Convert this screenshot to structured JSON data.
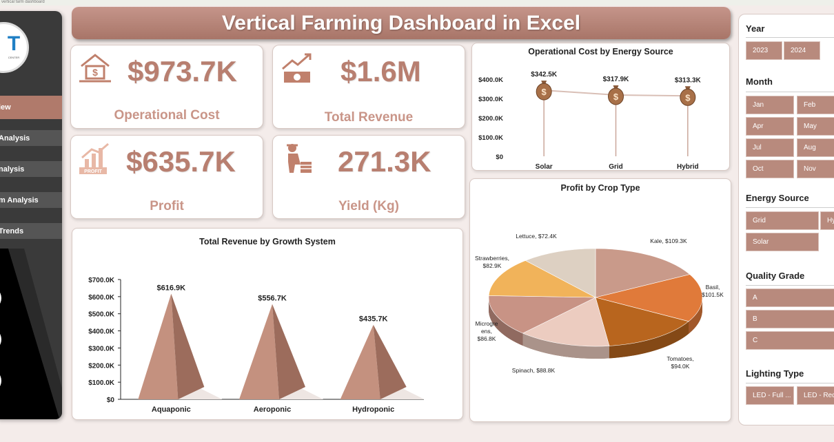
{
  "title": "Vertical Farming Dashboard in Excel",
  "top_strip_text": "vertical farm dashboard",
  "logo": {
    "mark": "T",
    "tag": "CENTER"
  },
  "colors": {
    "accent": "#b07a6b",
    "kpi_text": "#b87f70",
    "slicer": "#b88a7d"
  },
  "nav": {
    "items": [
      {
        "label": "iew",
        "active": true
      },
      {
        "label": "Analysis"
      },
      {
        "label": "nalysis"
      },
      {
        "label": "m Analysis"
      },
      {
        "label": "Trends"
      }
    ]
  },
  "kpis": {
    "operational_cost": {
      "value": "$973.7K",
      "label": "Operational Cost",
      "icon": "money-house-icon"
    },
    "total_revenue": {
      "value": "$1.6M",
      "label": "Total Revenue",
      "icon": "cash-growth-icon"
    },
    "profit": {
      "value": "$635.7K",
      "label": "Profit",
      "icon": "profit-chart-icon"
    },
    "yield": {
      "value": "271.3K",
      "label": "Yield (Kg)",
      "icon": "farmer-icon"
    }
  },
  "chart_data": [
    {
      "type": "line",
      "title": "Operational Cost by Energy Source",
      "categories": [
        "Solar",
        "Grid",
        "Hybrid"
      ],
      "values": [
        342.5,
        317.9,
        313.3
      ],
      "data_labels": [
        "$342.5K",
        "$317.9K",
        "$313.3K"
      ],
      "yticks": [
        "$0",
        "$100.0K",
        "$200.0K",
        "$300.0K",
        "$400.0K"
      ],
      "ylim": [
        0,
        400
      ],
      "marker": "money-bag-icon"
    },
    {
      "type": "bar",
      "title": "Total Revenue by Growth System",
      "categories": [
        "Aquaponic",
        "Aeroponic",
        "Hydroponic"
      ],
      "values": [
        616.9,
        556.7,
        435.7
      ],
      "data_labels": [
        "$616.9K",
        "$556.7K",
        "$435.7K"
      ],
      "yticks": [
        "$0",
        "$100.0K",
        "$200.0K",
        "$300.0K",
        "$400.0K",
        "$500.0K",
        "$600.0K",
        "$700.0K"
      ],
      "ylim": [
        0,
        700
      ],
      "shape": "pyramid"
    },
    {
      "type": "pie",
      "title": "Profit by Crop Type",
      "slices": [
        {
          "name": "Kale",
          "value": 109.3,
          "label": "Kale, $109.3K",
          "color": "#c99a8a"
        },
        {
          "name": "Basil",
          "value": 101.5,
          "label": "Basil, $101.5K",
          "color": "#e07a3a"
        },
        {
          "name": "Tomatoes",
          "value": 94.0,
          "label": "Tomatoes, $94.0K",
          "color": "#b8651e"
        },
        {
          "name": "Spinach",
          "value": 88.8,
          "label": "Spinach, $88.8K",
          "color": "#ecccc0"
        },
        {
          "name": "Microgreens",
          "value": 86.8,
          "label": "Microgreens, $86.8K",
          "color": "#c89385"
        },
        {
          "name": "Strawberries",
          "value": 82.9,
          "label": "Strawberries, $82.9K",
          "color": "#f1b35a"
        },
        {
          "name": "Lettuce",
          "value": 72.4,
          "label": "Lettuce, $72.4K",
          "color": "#ddd0c2"
        }
      ]
    }
  ],
  "filters": {
    "year": {
      "title": "Year",
      "options": [
        "2023",
        "2024"
      ]
    },
    "month": {
      "title": "Month",
      "options": [
        "Jan",
        "Feb",
        "Apr",
        "May",
        "Jul",
        "Aug",
        "Oct",
        "Nov"
      ]
    },
    "energy": {
      "title": "Energy Source",
      "options": [
        "Grid",
        "Hy",
        "Solar"
      ]
    },
    "quality": {
      "title": "Quality Grade",
      "options": [
        "A",
        "B",
        "C"
      ]
    },
    "lighting": {
      "title": "Lighting Type",
      "options": [
        "LED - Full ...",
        "LED - Red..."
      ]
    }
  }
}
